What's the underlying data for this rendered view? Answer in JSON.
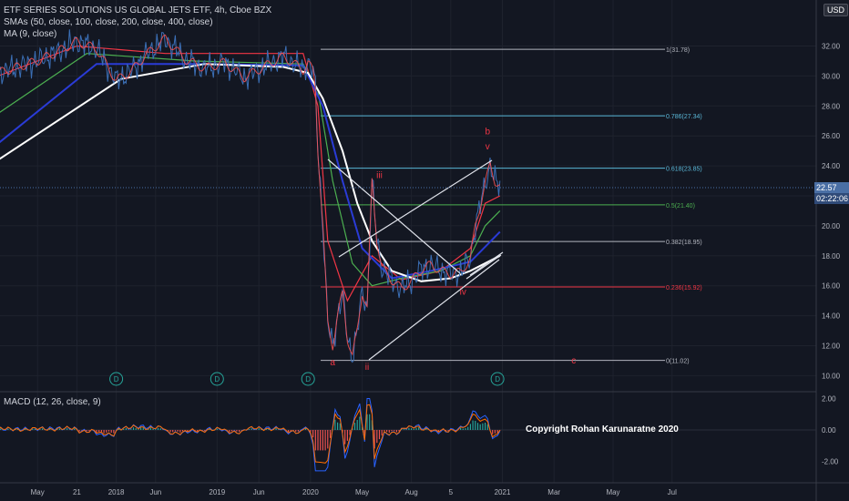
{
  "legend": {
    "symbol": "ETF SERIES SOLUTIONS US GLOBAL JETS ETF, 4h, Cboe BZX",
    "smas": "SMAs (50, close, 100, close, 200, close, 400, close)",
    "ma": "MA (9, close)",
    "macd": "MACD (12, 26, close, 9)"
  },
  "currency": "USD",
  "price_tag": {
    "value": "22.57",
    "countdown": "02:22:06"
  },
  "copyright": "Copyright Rohan Karunaratne 2020",
  "colors": {
    "fib_1": "#b2b5be",
    "fib_786": "#5ab8d8",
    "fib_618": "#5ab8d8",
    "fib_5": "#4caf50",
    "fib_382": "#b2b5be",
    "fib_236": "#f23645",
    "fib_0": "#b2b5be",
    "sma_fast": "#2196f3",
    "sma_mid": "#f23645",
    "sma_green": "#4caf50",
    "sma_blue": "#2a3bd6",
    "sma_slow": "#ffffff",
    "ma9": "#ff5252",
    "wave_labels": "#f23645",
    "dividend": "#26a69a"
  },
  "chart_data": [
    {
      "type": "line",
      "title": "ETF SERIES SOLUTIONS US GLOBAL JETS ETF, 4h, Cboe BZX",
      "x_ticks": [
        "May",
        "21",
        "2018",
        "Jun",
        "2019",
        "Jun",
        "2020",
        "May",
        "Aug",
        "5",
        "2021",
        "Mar",
        "May",
        "Jul"
      ],
      "y_ticks": [
        "32.00",
        "30.00",
        "28.00",
        "26.00",
        "24.00",
        "22.00",
        "20.00",
        "18.00",
        "16.00",
        "14.00",
        "12.00",
        "10.00"
      ],
      "ylim": [
        9.5,
        33.3
      ],
      "price_path": [
        [
          0,
          30.2
        ],
        [
          8,
          31.0
        ],
        [
          12,
          31.6
        ],
        [
          16,
          32.3
        ],
        [
          20,
          31.8
        ],
        [
          24,
          29.7
        ],
        [
          27,
          30.3
        ],
        [
          30,
          31.4
        ],
        [
          34,
          32.5
        ],
        [
          38,
          31.1
        ],
        [
          42,
          30.5
        ],
        [
          46,
          30.9
        ],
        [
          50,
          29.9
        ],
        [
          54,
          30.6
        ],
        [
          58,
          31.3
        ],
        [
          62,
          30.4
        ],
        [
          63,
          30.9
        ],
        [
          64,
          30.3
        ],
        [
          64.5,
          29.2
        ],
        [
          65,
          25.0
        ],
        [
          66,
          20.0
        ],
        [
          67,
          13.5
        ],
        [
          68,
          12.0
        ],
        [
          69,
          14.0
        ],
        [
          70,
          15.5
        ],
        [
          71,
          12.5
        ],
        [
          72,
          11.3
        ],
        [
          73,
          13.0
        ],
        [
          74,
          15.6
        ],
        [
          75,
          14.5
        ],
        [
          76,
          23.0
        ],
        [
          77,
          19.0
        ],
        [
          78,
          17.2
        ],
        [
          80,
          16.4
        ],
        [
          82,
          15.8
        ],
        [
          84,
          16.3
        ],
        [
          86,
          17.1
        ],
        [
          88,
          17.4
        ],
        [
          90,
          17.0
        ],
        [
          92,
          16.8
        ],
        [
          94,
          16.9
        ],
        [
          96,
          17.8
        ],
        [
          97,
          20.0
        ],
        [
          99,
          22.8
        ],
        [
          100,
          24.1
        ],
        [
          101,
          23.0
        ],
        [
          102,
          22.6
        ]
      ],
      "series": [
        {
          "name": "SMA 50",
          "values": [
            [
              0,
              30.0
            ],
            [
              16,
              32.0
            ],
            [
              34,
              31.5
            ],
            [
              62,
              31.5
            ],
            [
              65,
              28.0
            ],
            [
              67,
              19.0
            ],
            [
              71,
              15.0
            ],
            [
              76,
              18.0
            ],
            [
              82,
              16.4
            ],
            [
              90,
              17.0
            ],
            [
              96,
              18.5
            ],
            [
              99,
              21.5
            ],
            [
              102,
              22.0
            ]
          ]
        },
        {
          "name": "SMA 100",
          "values": [
            [
              0,
              27.5
            ],
            [
              18,
              31.5
            ],
            [
              40,
              31.0
            ],
            [
              62,
              30.8
            ],
            [
              65,
              29.0
            ],
            [
              68,
              23.0
            ],
            [
              72,
              17.5
            ],
            [
              76,
              16.0
            ],
            [
              82,
              16.5
            ],
            [
              90,
              17.0
            ],
            [
              96,
              18.0
            ],
            [
              99,
              20.0
            ],
            [
              102,
              21.0
            ]
          ]
        },
        {
          "name": "SMA 200",
          "values": [
            [
              0,
              25.5
            ],
            [
              20,
              30.8
            ],
            [
              40,
              30.8
            ],
            [
              62,
              30.7
            ],
            [
              66,
              28.0
            ],
            [
              70,
              23.0
            ],
            [
              74,
              18.5
            ],
            [
              80,
              16.5
            ],
            [
              88,
              17.0
            ],
            [
              96,
              17.6
            ],
            [
              102,
              19.6
            ]
          ]
        },
        {
          "name": "SMA 400",
          "values": [
            [
              0,
              24.4
            ],
            [
              25,
              29.8
            ],
            [
              42,
              30.8
            ],
            [
              58,
              30.6
            ],
            [
              63,
              30.2
            ],
            [
              66,
              28.5
            ],
            [
              70,
              25.0
            ],
            [
              73,
              21.5
            ],
            [
              76,
              19.0
            ],
            [
              80,
              17.0
            ],
            [
              86,
              16.3
            ],
            [
              92,
              16.5
            ],
            [
              96,
              17.0
            ],
            [
              102,
              18.0
            ]
          ]
        }
      ],
      "fib_levels": [
        {
          "ratio": 1,
          "value": 31.78,
          "label": "1(31.78)"
        },
        {
          "ratio": 0.786,
          "value": 27.34,
          "label": "0.786(27.34)"
        },
        {
          "ratio": 0.618,
          "value": 23.85,
          "label": "0.618(23.85)"
        },
        {
          "ratio": 0.5,
          "value": 21.4,
          "label": "0.5(21.40)"
        },
        {
          "ratio": 0.382,
          "value": 18.95,
          "label": "0.382(18.95)"
        },
        {
          "ratio": 0.236,
          "value": 15.92,
          "label": "0.236(15.92)"
        },
        {
          "ratio": 0,
          "value": 11.02,
          "label": "0(11.02)"
        }
      ],
      "wave_labels": [
        {
          "text": "a",
          "x": 68,
          "y": 10.7
        },
        {
          "text": "ii",
          "x": 75,
          "y": 10.4
        },
        {
          "text": "iii",
          "x": 77.5,
          "y": 23.2
        },
        {
          "text": "iv",
          "x": 94.5,
          "y": 15.4
        },
        {
          "text": "v",
          "x": 99.5,
          "y": 25.1
        },
        {
          "text": "b",
          "x": 99.5,
          "y": 26.1
        },
        {
          "text": "c",
          "x": 117,
          "y": 10.8
        }
      ],
      "dividend_markers": [
        {
          "text": "D",
          "x": 24
        },
        {
          "text": "D",
          "x": 44.5
        },
        {
          "text": "D",
          "x": 63
        },
        {
          "text": "D",
          "x": 101.5
        }
      ]
    },
    {
      "type": "line",
      "title": "MACD (12, 26, close, 9)",
      "y_ticks": [
        "2.00",
        "0.00",
        "-2.00"
      ],
      "ylim": [
        -3.0,
        2.5
      ]
    }
  ]
}
